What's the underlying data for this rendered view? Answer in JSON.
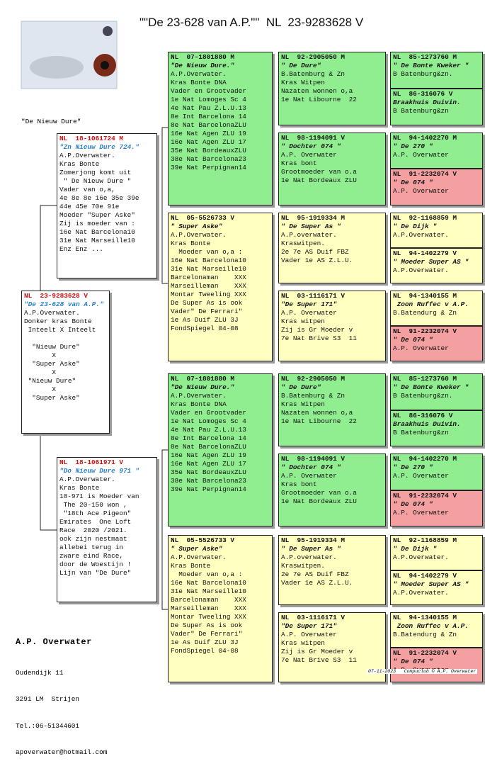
{
  "header": {
    "title": "\"\"De 23-628 van A.P.\"\"  NL  23-9283628 V",
    "subject_label": "\"De Nieuw Dure\""
  },
  "pedigree": {
    "subject": {
      "color": "#ffffff",
      "ring": "NL  23-9283628 V",
      "name": "\"De 23-628 van A.P.\"",
      "lines": [
        "A.P.Overwater.",
        "Donker kras Bonte",
        " Inteelt X Inteelt"
      ],
      "notes": [
        "  \"Nieuw Dure\"",
        "       X",
        "  \"Super Aske\"",
        "       X",
        " \"Nieuw Dure\"",
        "       X",
        "  \"Super Aske\""
      ]
    },
    "sire": {
      "color": "#ffffff",
      "ring": "NL  18-1061724 M",
      "name": "\"Zn Nieuw Dure 724.\"",
      "lines": [
        "A.P.Overwater.",
        "Kras Bonte",
        "Zomerjong komt uit",
        " \" De Nieuw Dure \"",
        "Vader van o,a,",
        "4e 8e 8e 16e 35e 39e",
        "44e 45e 70e 91e",
        "Moeder \"Super Aske\"",
        "Zij is moeder van :",
        "16e Nat Barcelona10",
        "31e Nat Marseille10",
        "Enz Enz ..."
      ]
    },
    "dam": {
      "color": "#ffffff",
      "ring": "NL  18-1061971 V",
      "name": "\"Do Nieuw Dure 971 \"",
      "lines": [
        "A.P.Overwater.",
        "Kras Bonte",
        "18-971 is Moeder van",
        " The 20-150 won ,",
        " \"18th Ace Pigeon\"",
        "Emirates  One Loft",
        "Race  2020 /2021.",
        "ook zijn nestmaat",
        "allebei terug in",
        "zware eind Race,",
        "door de Woestijn !",
        "Lijn van \"De Dure\""
      ]
    },
    "generation3": [
      {
        "color": "#90ee90",
        "ring": "NL  07-1801880 M",
        "name": "\"De Nieuw Dure.\"",
        "lines": [
          "A.P.Overwater.",
          "Kras Bonte DNA",
          "Vader en Grootvader",
          "1e Nat Lomoges Sc 4",
          "4e Nat Pau Z.L.U.13",
          "8e Int Barcelona 14",
          "8e Nat BarcelonaZLU",
          "16e Nat Agen ZLU 19",
          "16e Nat Agen ZLU 17",
          "35e Nat BordeauxZLU",
          "38e Nat Barcelona23",
          "39e Nat Perpignan14"
        ]
      },
      {
        "color": "#ffffc0",
        "ring": "NL  05-5526733 V",
        "name": "\" Super Aske\"",
        "lines": [
          "A.P.Overwater.",
          "Kras Bonte",
          "  Moeder van o,a :",
          "16e Nat Barcelona10",
          "31e Nat Marseille10",
          "Barcelonaman    XXX",
          "Marseilleman    XXX",
          "Montar Tweeling XXX",
          "De Super As is ook",
          "Vader\" De Ferrari\"",
          "1e As Duif ZLU 3J",
          "FondSpiegel 04-08"
        ]
      },
      {
        "color": "#90ee90",
        "ring": "NL  07-1801880 M",
        "name": "\"De Nieuw Dure.\"",
        "lines": [
          "A.P.Overwater.",
          "Kras Bonte DNA",
          "Vader en Grootvader",
          "1e Nat Lomoges Sc 4",
          "4e Nat Pau Z.L.U.13",
          "8e Int Barcelona 14",
          "8e Nat BarcelonaZLU",
          "16e Nat Agen ZLU 19",
          "16e Nat Agen ZLU 17",
          "35e Nat BordeauxZLU",
          "38e Nat Barcelona23",
          "39e Nat Perpignan14"
        ]
      },
      {
        "color": "#ffffc0",
        "ring": "NL  05-5526733 V",
        "name": "\" Super Aske\"",
        "lines": [
          "A.P.Overwater.",
          "Kras Bonte",
          "  Moeder van o,a :",
          "16e Nat Barcelona10",
          "31e Nat Marseille10",
          "Barcelonaman    XXX",
          "Marseilleman    XXX",
          "Montar Tweeling XXX",
          "De Super As is ook",
          "Vader\" De Ferrari\"",
          "1e As Duif ZLU 3J",
          "FondSpiegel 04-08"
        ]
      }
    ],
    "generation4": [
      {
        "color": "#90ee90",
        "ring": "NL  92-2905050 M",
        "name": "\" De Dure\"",
        "lines": [
          "B.Batenburg & Zn",
          "Kras Witpen",
          "Nazaten wonnen o,a",
          "1e Nat Libourne  22"
        ]
      },
      {
        "color": "#90ee90",
        "ring": "NL  98-1194091 V",
        "name": "\" Dochter 074 \"",
        "lines": [
          "A.P. Overwater",
          "Kras bont",
          "Grootmoeder van o.a",
          "1e Nat Bordeaux ZLU"
        ]
      },
      {
        "color": "#ffffc0",
        "ring": "NL  95-1919334 M",
        "name": "\" De Super As \"",
        "lines": [
          "A.P.overwater.",
          "Kraswitpen.",
          "2e 7e AS Duif FBZ",
          "Vader 1e AS Z.L.U."
        ]
      },
      {
        "color": "#ffffc0",
        "ring": "NL  03-1116171 V",
        "name": "\"De Super 171\"",
        "lines": [
          "A.P. Overwater",
          "Kras witpen",
          "Zij is Gr Moeder v",
          "7e Nat Brive S3  11"
        ]
      },
      {
        "color": "#90ee90",
        "ring": "NL  92-2905050 M",
        "name": "\" De Dure\"",
        "lines": [
          "B.Batenburg & Zn",
          "Kras Witpen",
          "Nazaten wonnen o,a",
          "1e Nat Libourne  22"
        ]
      },
      {
        "color": "#90ee90",
        "ring": "NL  98-1194091 V",
        "name": "\" Dochter 074 \"",
        "lines": [
          "A.P. Overwater",
          "Kras bont",
          "Grootmoeder van o.a",
          "1e Nat Bordeaux ZLU"
        ]
      },
      {
        "color": "#ffffc0",
        "ring": "NL  95-1919334 M",
        "name": "\" De Super As \"",
        "lines": [
          "A.P.overwater.",
          "Kraswitpen.",
          "2e 7e AS Duif FBZ",
          "Vader 1e AS Z.L.U."
        ]
      },
      {
        "color": "#ffffc0",
        "ring": "NL  03-1116171 V",
        "name": "\"De Super 171\"",
        "lines": [
          "A.P. Overwater",
          "Kras witpen",
          "Zij is Gr Moeder v",
          "7e Nat Brive S3  11"
        ]
      }
    ],
    "generation5": [
      {
        "color": "#90ee90",
        "ring": "NL  85-1273760 M",
        "name": "\" De Bonte Kweker \"",
        "lines": [
          "B Batenburg&zn."
        ]
      },
      {
        "color": "#90ee90",
        "ring": "NL  86-316076 V",
        "name": "Braakhuis Duivin.",
        "lines": [
          "B Batenburg&zn"
        ]
      },
      {
        "color": "#90ee90",
        "ring": "NL  94-1402270 M",
        "name": "\" De 270 \"",
        "lines": [
          "A.P. Overwater"
        ]
      },
      {
        "color": "#f4a0a0",
        "ring": "NL  91-2232074 V",
        "name": "\" De 074 \"",
        "lines": [
          "A.P. Overwater"
        ]
      },
      {
        "color": "#ffffc0",
        "ring": "NL  92-1168859 M",
        "name": "\" De Dijk \"",
        "lines": [
          "A.P.Overwater."
        ]
      },
      {
        "color": "#ffffc0",
        "ring": "NL  94-1402279 V",
        "name": "\" Moeder Super AS \"",
        "lines": [
          "A.P.Overwater."
        ]
      },
      {
        "color": "#ffffc0",
        "ring": "NL  94-1340155 M",
        "name": " Zoon Ruffec v A.P.",
        "lines": [
          "B.Batendurg & Zn"
        ]
      },
      {
        "color": "#f4a0a0",
        "ring": "NL  91-2232074 V",
        "name": "\" De 074 \"",
        "lines": [
          "A.P. Overwater"
        ]
      },
      {
        "color": "#90ee90",
        "ring": "NL  85-1273760 M",
        "name": "\" De Bonte Kweker \"",
        "lines": [
          "B Batenburg&zn."
        ]
      },
      {
        "color": "#90ee90",
        "ring": "NL  86-316076 V",
        "name": "Braakhuis Duivin.",
        "lines": [
          "B Batenburg&zn"
        ]
      },
      {
        "color": "#90ee90",
        "ring": "NL  94-1402270 M",
        "name": "\" De 270 \"",
        "lines": [
          "A.P. Overwater"
        ]
      },
      {
        "color": "#f4a0a0",
        "ring": "NL  91-2232074 V",
        "name": "\" De 074 \"",
        "lines": [
          "A.P. Overwater"
        ]
      },
      {
        "color": "#ffffc0",
        "ring": "NL  92-1168859 M",
        "name": "\" De Dijk \"",
        "lines": [
          "A.P.Overwater."
        ]
      },
      {
        "color": "#ffffc0",
        "ring": "NL  94-1402279 V",
        "name": "\" Moeder Super AS \"",
        "lines": [
          "A.P.Overwater."
        ]
      },
      {
        "color": "#ffffc0",
        "ring": "NL  94-1340155 M",
        "name": " Zoon Ruffec v A.P.",
        "lines": [
          "B.Batendurg & Zn"
        ]
      },
      {
        "color": "#f4a0a0",
        "ring": "NL  91-2232074 V",
        "name": "\" De 074 \"",
        "lines": [
          "A.P. Overwater"
        ]
      }
    ]
  },
  "owner": {
    "name": "A.P. Overwater",
    "lines": [
      "Oudendijk 11",
      "3291 LM  Strijen",
      "Tel.:06-51344601",
      "apoverwater@hotmail.com"
    ]
  },
  "footer": {
    "date": "07-11-2023",
    "credit": "Compuclub © A.P. Overwater"
  }
}
